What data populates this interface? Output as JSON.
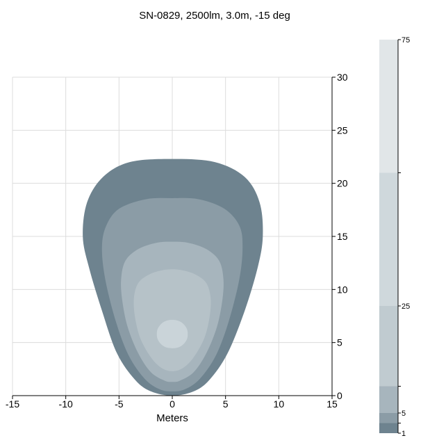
{
  "chart_data": {
    "type": "contour",
    "title": "SN-0829, 2500lm, 3.0m, -15 deg",
    "xlabel": "Meters",
    "ylabel": "",
    "xlim": [
      -15,
      15
    ],
    "ylim": [
      0,
      30
    ],
    "x_ticks": [
      -15,
      -10,
      -5,
      0,
      5,
      10,
      15
    ],
    "y_ticks": [
      0,
      5,
      10,
      15,
      20,
      25,
      30
    ],
    "grid": true,
    "y_axis_position": "right",
    "colorbar": {
      "position": "right",
      "tick_labels": [
        "75",
        "25",
        "5",
        "1"
      ],
      "bands": [
        {
          "from": 1,
          "to": 3,
          "color": "#6e838f"
        },
        {
          "from": 3,
          "to": 5,
          "color": "#8b9ca6"
        },
        {
          "from": 5,
          "to": 10,
          "color": "#a7b5bd"
        },
        {
          "from": 10,
          "to": 25,
          "color": "#c0cbd0"
        },
        {
          "from": 25,
          "to": 50,
          "color": "#cfd8dc"
        },
        {
          "from": 50,
          "to": 75,
          "color": "#e1e6e8"
        }
      ]
    },
    "contours": [
      {
        "level": 1,
        "color": "#6e838f",
        "points": [
          [
            -8.4,
            15
          ],
          [
            -8.0,
            18.2
          ],
          [
            -6.5,
            20.6
          ],
          [
            -4,
            22
          ],
          [
            0,
            22.3
          ],
          [
            4,
            22
          ],
          [
            6.8,
            20.6
          ],
          [
            8.2,
            18.2
          ],
          [
            8.5,
            15
          ],
          [
            8.0,
            12
          ],
          [
            6.8,
            8
          ],
          [
            5.2,
            4
          ],
          [
            3.5,
            1.5
          ],
          [
            2,
            0.4
          ],
          [
            0,
            0
          ],
          [
            -2,
            0.4
          ],
          [
            -3.5,
            1.5
          ],
          [
            -5.2,
            4
          ],
          [
            -6.6,
            8
          ],
          [
            -7.8,
            12
          ]
        ]
      },
      {
        "level": 3,
        "color": "#8b9ca6",
        "points": [
          [
            -6.6,
            14
          ],
          [
            -6.2,
            16
          ],
          [
            -5,
            17.6
          ],
          [
            -2.5,
            18.5
          ],
          [
            0,
            18.6
          ],
          [
            2.5,
            18.5
          ],
          [
            4.9,
            17.6
          ],
          [
            6.3,
            16
          ],
          [
            6.6,
            14
          ],
          [
            6.3,
            11
          ],
          [
            5.3,
            7
          ],
          [
            4.1,
            3.8
          ],
          [
            2.6,
            1.6
          ],
          [
            1.2,
            0.6
          ],
          [
            0,
            0.4
          ],
          [
            -1.2,
            0.6
          ],
          [
            -2.6,
            1.6
          ],
          [
            -4.1,
            3.8
          ],
          [
            -5.3,
            7
          ],
          [
            -6.3,
            11
          ]
        ]
      },
      {
        "level": 5,
        "color": "#a7b5bd",
        "points": [
          [
            -4.8,
            11
          ],
          [
            -4.4,
            12.7
          ],
          [
            -3.2,
            13.8
          ],
          [
            -1.5,
            14.4
          ],
          [
            0,
            14.5
          ],
          [
            1.5,
            14.4
          ],
          [
            3.2,
            13.8
          ],
          [
            4.4,
            12.7
          ],
          [
            4.8,
            11
          ],
          [
            4.7,
            9
          ],
          [
            4.2,
            6.5
          ],
          [
            3.2,
            4
          ],
          [
            2,
            2.2
          ],
          [
            0.7,
            1.4
          ],
          [
            0,
            1.3
          ],
          [
            -0.7,
            1.4
          ],
          [
            -2,
            2.2
          ],
          [
            -3.2,
            4
          ],
          [
            -4.2,
            6.5
          ],
          [
            -4.7,
            9
          ]
        ]
      },
      {
        "level": 10,
        "color": "#b6c2c8",
        "points": [
          [
            -3.6,
            9.2
          ],
          [
            -3.2,
            10.6
          ],
          [
            -2.2,
            11.4
          ],
          [
            -1,
            11.8
          ],
          [
            0,
            11.9
          ],
          [
            1,
            11.8
          ],
          [
            2.2,
            11.4
          ],
          [
            3.2,
            10.6
          ],
          [
            3.6,
            9.2
          ],
          [
            3.5,
            7.4
          ],
          [
            3,
            5.4
          ],
          [
            2,
            3.6
          ],
          [
            1,
            2.6
          ],
          [
            0,
            2.3
          ],
          [
            -1,
            2.6
          ],
          [
            -2,
            3.6
          ],
          [
            -3,
            5.4
          ],
          [
            -3.5,
            7.4
          ]
        ]
      },
      {
        "level": 25,
        "color": "#cad4d9",
        "points": [
          [
            -1.4,
            6.2
          ],
          [
            -1,
            6.8
          ],
          [
            -0.4,
            7.1
          ],
          [
            0.4,
            7.1
          ],
          [
            1,
            6.8
          ],
          [
            1.4,
            6.2
          ],
          [
            1.4,
            5.4
          ],
          [
            1,
            4.8
          ],
          [
            0.4,
            4.5
          ],
          [
            -0.4,
            4.5
          ],
          [
            -1,
            4.8
          ],
          [
            -1.4,
            5.4
          ]
        ]
      }
    ]
  }
}
